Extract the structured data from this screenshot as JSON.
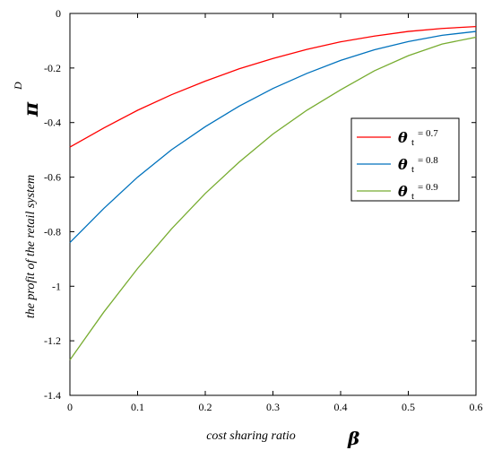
{
  "chart_data": {
    "type": "line",
    "xlabel": "cost sharing ratio",
    "xlabel_symbol": "β",
    "ylabel": "the profit of the retail system",
    "ylabel_symbol": "π",
    "ylabel_superscript": "D",
    "xlim": [
      0,
      0.6
    ],
    "ylim": [
      -1.4,
      0
    ],
    "xticks": [
      0,
      0.1,
      0.2,
      0.3,
      0.4,
      0.5,
      0.6
    ],
    "xtick_labels": [
      "0",
      "0.1",
      "0.2",
      "0.3",
      "0.4",
      "0.5",
      "0.6"
    ],
    "yticks": [
      0,
      -0.2,
      -0.4,
      -0.6,
      -0.8,
      -1,
      -1.2,
      -1.4
    ],
    "ytick_labels": [
      "0",
      "-0.2",
      "-0.4",
      "-0.6",
      "-0.8",
      "-1",
      "-1.2",
      "-1.4"
    ],
    "grid": false,
    "legend_position": "right",
    "x": [
      0,
      0.05,
      0.1,
      0.15,
      0.2,
      0.25,
      0.3,
      0.35,
      0.4,
      0.45,
      0.5,
      0.55,
      0.6
    ],
    "series": [
      {
        "name": "θ t = 0.7",
        "legend_symbol": "θ",
        "legend_subscript": "t",
        "legend_value": "= 0.7",
        "color": "#ff0000",
        "values": [
          -0.49,
          -0.42,
          -0.355,
          -0.298,
          -0.248,
          -0.203,
          -0.165,
          -0.132,
          -0.104,
          -0.083,
          -0.066,
          -0.055,
          -0.048
        ]
      },
      {
        "name": "θ t = 0.8",
        "legend_symbol": "θ",
        "legend_subscript": "t",
        "legend_value": "= 0.8",
        "color": "#0072bd",
        "values": [
          -0.84,
          -0.715,
          -0.6,
          -0.5,
          -0.415,
          -0.34,
          -0.275,
          -0.22,
          -0.172,
          -0.133,
          -0.103,
          -0.08,
          -0.066
        ]
      },
      {
        "name": "θ t = 0.9",
        "legend_symbol": "θ",
        "legend_subscript": "t",
        "legend_value": "= 0.9",
        "color": "#77ac30",
        "values": [
          -1.27,
          -1.095,
          -0.935,
          -0.79,
          -0.66,
          -0.545,
          -0.442,
          -0.355,
          -0.28,
          -0.21,
          -0.155,
          -0.112,
          -0.087
        ]
      }
    ]
  }
}
